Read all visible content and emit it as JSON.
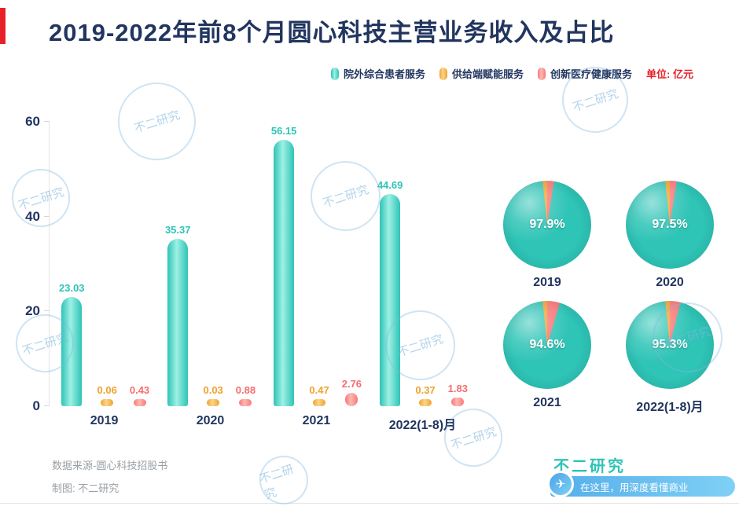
{
  "title": "2019-2022年前8个月圆心科技主营业务收入及占比",
  "unit_label": "单位: 亿元",
  "legend": {
    "items": [
      {
        "label": "院外综合患者服务",
        "color": "#2ec4b6",
        "color_light": "#9ef0e4"
      },
      {
        "label": "供给端赋能服务",
        "color": "#f0a22e",
        "color_light": "#fbd58a"
      },
      {
        "label": "创新医疗健康服务",
        "color": "#f87878",
        "color_light": "#fcb9b3"
      }
    ]
  },
  "watermark_text": "不二研究",
  "footer": {
    "source": "数据来源-圆心科技招股书",
    "credit": "制图: 不二研究",
    "brand": "不二研究",
    "slogan": "在这里，用深度看懂商业",
    "plane_icon": "✈"
  },
  "chart_data": [
    {
      "type": "bar",
      "categories": [
        "2019",
        "2020",
        "2021",
        "2022(1-8)月"
      ],
      "series": [
        {
          "name": "院外综合患者服务",
          "values": [
            23.03,
            35.37,
            56.15,
            44.69
          ],
          "color": "#2ec4b6",
          "color_light": "#9ef0e4",
          "label_color": "#2ec4b6"
        },
        {
          "name": "供给端赋能服务",
          "values": [
            0.06,
            0.03,
            0.47,
            0.37
          ],
          "color": "#f0a22e",
          "color_light": "#fbd58a",
          "label_color": "#f0a22e"
        },
        {
          "name": "创新医疗健康服务",
          "values": [
            0.43,
            0.88,
            2.76,
            1.83
          ],
          "color": "#f87878",
          "color_light": "#fcb9b3",
          "label_color": "#f66d6d"
        }
      ],
      "unit": "亿元",
      "ylim": [
        0,
        60
      ],
      "yticks": [
        0,
        20,
        40,
        60
      ],
      "grid": false,
      "legend_position": "top"
    },
    {
      "type": "pie",
      "slice_order": [
        "院外综合患者服务",
        "供给端赋能服务",
        "创新医疗健康服务"
      ],
      "colors": [
        "#2ec4b6",
        "#f0a22e",
        "#f87878"
      ],
      "pies": [
        {
          "label": "2019",
          "values": [
            23.03,
            0.06,
            0.43
          ],
          "share_label": "97.9%"
        },
        {
          "label": "2020",
          "values": [
            35.37,
            0.03,
            0.88
          ],
          "share_label": "97.5%"
        },
        {
          "label": "2021",
          "values": [
            56.15,
            0.47,
            2.76
          ],
          "share_label": "94.6%"
        },
        {
          "label": "2022(1-8)月",
          "values": [
            44.69,
            0.37,
            1.83
          ],
          "share_label": "95.3%"
        }
      ]
    }
  ]
}
